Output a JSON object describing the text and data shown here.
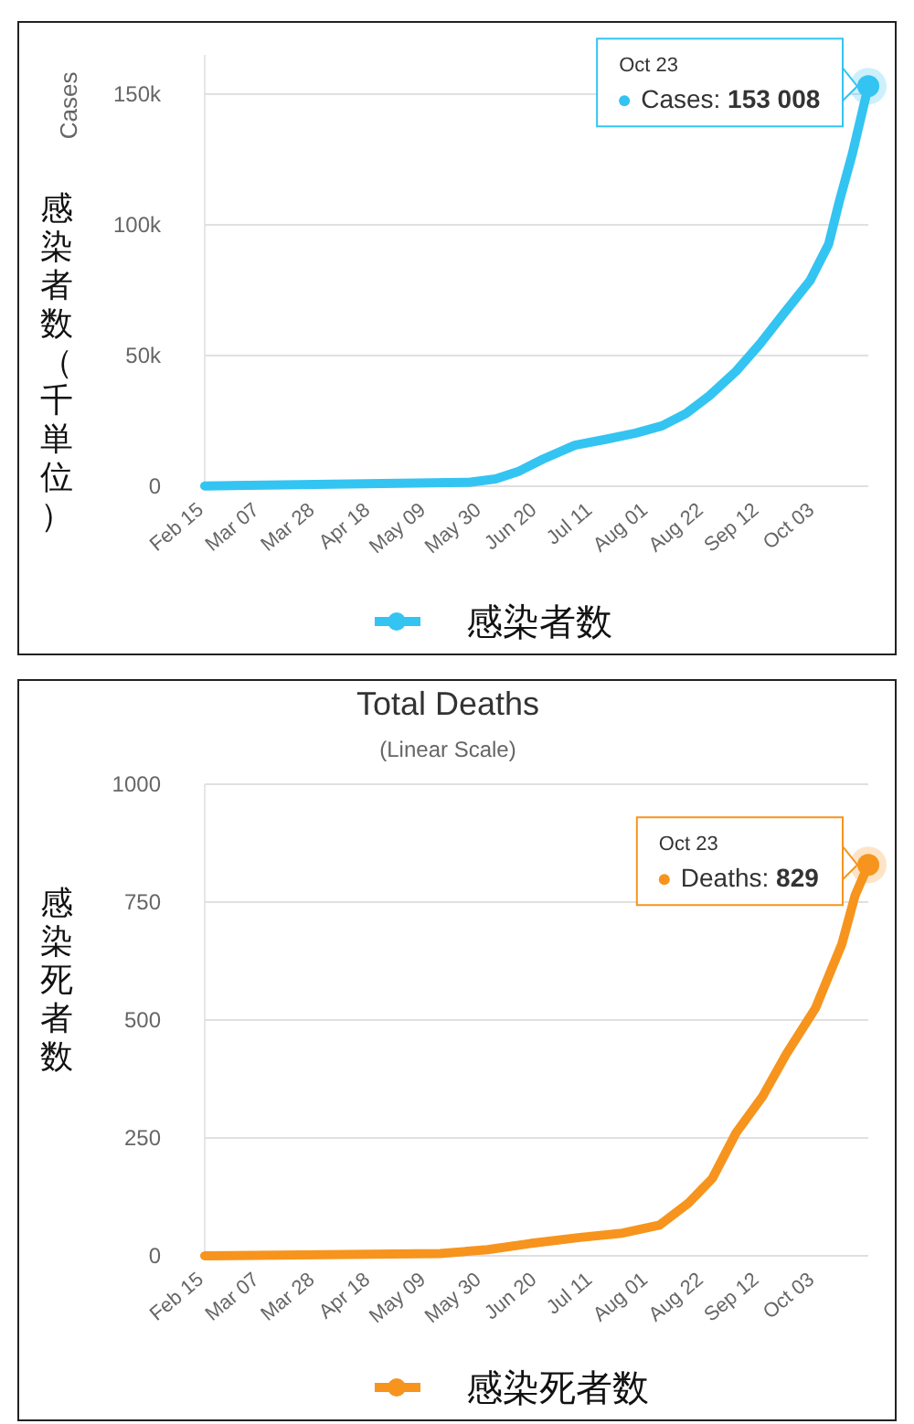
{
  "chart_data": [
    {
      "type": "line",
      "ylabel": "Cases",
      "x": [
        "--02-15",
        "--05-25",
        "--06-04",
        "--06-13",
        "--06-22",
        "--07-04",
        "--07-16",
        "--07-27",
        "--08-06",
        "--08-15",
        "--08-24",
        "--09-03",
        "--09-12",
        "--09-21",
        "--10-01",
        "--10-08",
        "--10-12",
        "--10-17",
        "--10-23"
      ],
      "series": [
        {
          "name": "感染者数",
          "color": "#33c4f2",
          "values": [
            100,
            1500,
            2800,
            5800,
            10400,
            15700,
            18000,
            20300,
            23100,
            27800,
            34700,
            44000,
            54400,
            66000,
            78700,
            92600,
            108800,
            127300,
            153008
          ]
        }
      ],
      "xticks": [
        {
          "value": "--02-15",
          "label": "Feb 15"
        },
        {
          "value": "--03-07",
          "label": "Mar 07"
        },
        {
          "value": "--03-28",
          "label": "Mar 28"
        },
        {
          "value": "--04-18",
          "label": "Apr 18"
        },
        {
          "value": "--05-09",
          "label": "May 09"
        },
        {
          "value": "--05-30",
          "label": "May 30"
        },
        {
          "value": "--06-20",
          "label": "Jun 20"
        },
        {
          "value": "--07-11",
          "label": "Jul 11"
        },
        {
          "value": "--08-01",
          "label": "Aug 01"
        },
        {
          "value": "--08-22",
          "label": "Aug 22"
        },
        {
          "value": "--09-12",
          "label": "Sep 12"
        },
        {
          "value": "--10-03",
          "label": "Oct 03"
        }
      ],
      "xlim": [
        "--02-15",
        "--10-23"
      ],
      "ylim": [
        0,
        165000
      ],
      "yticks": [
        0,
        {
          "value": 50000,
          "label": "50k"
        },
        {
          "value": 100000,
          "label": "100k"
        },
        {
          "value": 150000,
          "label": "150k"
        }
      ],
      "grid": "y",
      "legend": "bottom",
      "annotations": [
        "感染者数（千単位）",
        {
          "text": "Oct 23\nCases: 153 008",
          "x": "--10-23",
          "y": 153008
        }
      ]
    },
    {
      "type": "line",
      "title": "Total Deaths",
      "subtitle": "(Linear Scale)",
      "ylabel": "感染死者数",
      "x": [
        "--02-15",
        "--05-14",
        "--06-01",
        "--06-17",
        "--07-06",
        "--07-22",
        "--08-05",
        "--08-16",
        "--08-25",
        "--09-03",
        "--09-13",
        "--09-22",
        "--10-03",
        "--10-13",
        "--10-18",
        "--10-23"
      ],
      "series": [
        {
          "name": "感染死者数",
          "color": "#f7941d",
          "values": [
            0,
            5,
            13,
            26,
            39,
            48,
            65,
            112,
            164,
            261,
            338,
            428,
            525,
            661,
            764,
            829
          ]
        }
      ],
      "xticks": [
        {
          "value": "--02-15",
          "label": "Feb 15"
        },
        {
          "value": "--03-07",
          "label": "Mar 07"
        },
        {
          "value": "--03-28",
          "label": "Mar 28"
        },
        {
          "value": "--04-18",
          "label": "Apr 18"
        },
        {
          "value": "--05-09",
          "label": "May 09"
        },
        {
          "value": "--05-30",
          "label": "May 30"
        },
        {
          "value": "--06-20",
          "label": "Jun 20"
        },
        {
          "value": "--07-11",
          "label": "Jul 11"
        },
        {
          "value": "--08-01",
          "label": "Aug 01"
        },
        {
          "value": "--08-22",
          "label": "Aug 22"
        },
        {
          "value": "--09-12",
          "label": "Sep 12"
        },
        {
          "value": "--10-03",
          "label": "Oct 03"
        }
      ],
      "xlim": [
        "--02-15",
        "--10-23"
      ],
      "ylim": [
        0,
        1000
      ],
      "yticks": [
        0,
        250,
        500,
        750,
        1000
      ],
      "grid": "y",
      "legend": "bottom",
      "annotations": [
        {
          "text": "Oct 23\nDeaths: 829",
          "x": "--10-23",
          "y": 829
        }
      ]
    }
  ]
}
